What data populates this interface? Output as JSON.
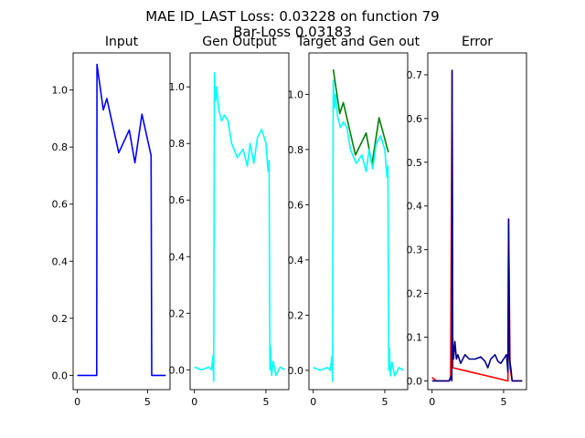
{
  "suptitle": {
    "line1": "MAE ID_LAST Loss: 0.03228 on function 79",
    "line2": "Bar-Loss 0.03183"
  },
  "chart_data": [
    {
      "type": "line",
      "title": "Input",
      "xlim": [
        -0.3,
        6.6
      ],
      "ylim": [
        -0.05,
        1.13
      ],
      "xticks": [
        0,
        5
      ],
      "yticks": [
        0.0,
        0.2,
        0.4,
        0.6,
        0.8,
        1.0
      ],
      "ytick_labels": [
        "0.0",
        "0.2",
        "0.4",
        "0.6",
        "0.8",
        "1.0"
      ],
      "series": [
        {
          "color": "#0000ff",
          "points": [
            [
              0,
              0
            ],
            [
              1.38,
              0
            ],
            [
              1.4,
              1.09
            ],
            [
              1.85,
              0.93
            ],
            [
              2.1,
              0.97
            ],
            [
              2.95,
              0.78
            ],
            [
              3.7,
              0.86
            ],
            [
              4.1,
              0.745
            ],
            [
              4.6,
              0.915
            ],
            [
              5.25,
              0.77
            ],
            [
              5.3,
              0
            ],
            [
              6.3,
              0
            ]
          ]
        }
      ]
    },
    {
      "type": "line",
      "title": "Gen Output",
      "xlim": [
        -0.3,
        6.6
      ],
      "ylim": [
        -0.07,
        1.12
      ],
      "xticks": [
        0,
        5
      ],
      "yticks": [
        0.0,
        0.2,
        0.4,
        0.6,
        0.8,
        1.0
      ],
      "ytick_labels": [
        "0.0",
        "0.2",
        "0.4",
        "0.6",
        "0.8",
        "1.0"
      ],
      "series": [
        {
          "color": "#00ffff",
          "points": [
            [
              0,
              0.01
            ],
            [
              0.5,
              0
            ],
            [
              1.0,
              0.01
            ],
            [
              1.2,
              0.0
            ],
            [
              1.3,
              0.05
            ],
            [
              1.35,
              -0.04
            ],
            [
              1.4,
              1.05
            ],
            [
              1.48,
              0.95
            ],
            [
              1.55,
              1.0
            ],
            [
              1.7,
              0.92
            ],
            [
              1.9,
              0.88
            ],
            [
              2.1,
              0.9
            ],
            [
              2.35,
              0.88
            ],
            [
              2.6,
              0.8
            ],
            [
              3.0,
              0.75
            ],
            [
              3.4,
              0.78
            ],
            [
              3.7,
              0.72
            ],
            [
              3.9,
              0.8
            ],
            [
              4.15,
              0.73
            ],
            [
              4.4,
              0.82
            ],
            [
              4.7,
              0.85
            ],
            [
              5.0,
              0.8
            ],
            [
              5.15,
              0.7
            ],
            [
              5.22,
              0.74
            ],
            [
              5.28,
              0.0
            ],
            [
              5.32,
              0.08
            ],
            [
              5.4,
              -0.02
            ],
            [
              5.5,
              0.03
            ],
            [
              5.7,
              -0.02
            ],
            [
              6.0,
              0.01
            ],
            [
              6.3,
              0.0
            ]
          ]
        }
      ]
    },
    {
      "type": "line",
      "title": "Target and Gen out",
      "xlim": [
        -0.3,
        6.6
      ],
      "ylim": [
        -0.07,
        1.15
      ],
      "xticks": [
        0,
        5
      ],
      "yticks": [
        0.0,
        0.2,
        0.4,
        0.6,
        0.8,
        1.0
      ],
      "ytick_labels": [
        "0.0",
        "0.2",
        "0.4",
        "0.6",
        "0.8",
        "1.0"
      ],
      "series": [
        {
          "color": "#008000",
          "points": [
            [
              1.4,
              1.09
            ],
            [
              1.85,
              0.93
            ],
            [
              2.1,
              0.97
            ],
            [
              2.95,
              0.78
            ],
            [
              3.7,
              0.86
            ],
            [
              4.1,
              0.745
            ],
            [
              4.6,
              0.915
            ],
            [
              5.25,
              0.79
            ]
          ]
        },
        {
          "color": "#00ffff",
          "points": [
            [
              0,
              0.01
            ],
            [
              0.5,
              0
            ],
            [
              1.0,
              0.01
            ],
            [
              1.2,
              0.0
            ],
            [
              1.3,
              0.05
            ],
            [
              1.35,
              -0.04
            ],
            [
              1.4,
              1.05
            ],
            [
              1.48,
              0.95
            ],
            [
              1.55,
              1.0
            ],
            [
              1.7,
              0.92
            ],
            [
              1.9,
              0.88
            ],
            [
              2.1,
              0.9
            ],
            [
              2.35,
              0.88
            ],
            [
              2.6,
              0.8
            ],
            [
              3.0,
              0.75
            ],
            [
              3.4,
              0.78
            ],
            [
              3.7,
              0.72
            ],
            [
              3.9,
              0.8
            ],
            [
              4.15,
              0.73
            ],
            [
              4.4,
              0.82
            ],
            [
              4.7,
              0.85
            ],
            [
              5.0,
              0.8
            ],
            [
              5.15,
              0.7
            ],
            [
              5.22,
              0.74
            ],
            [
              5.28,
              0.0
            ],
            [
              5.32,
              0.08
            ],
            [
              5.4,
              -0.02
            ],
            [
              5.5,
              0.03
            ],
            [
              5.7,
              -0.02
            ],
            [
              6.0,
              0.01
            ],
            [
              6.3,
              0.0
            ]
          ]
        }
      ]
    },
    {
      "type": "line",
      "title": "Error",
      "xlim": [
        -0.3,
        6.6
      ],
      "ylim": [
        -0.02,
        0.75
      ],
      "xticks": [
        0,
        5
      ],
      "yticks": [
        0.0,
        0.1,
        0.2,
        0.3,
        0.4,
        0.5,
        0.6,
        0.7
      ],
      "ytick_labels": [
        "0.0",
        "0.1",
        "0.2",
        "0.3",
        "0.4",
        "0.5",
        "0.6",
        "0.7"
      ],
      "series": [
        {
          "color": "#ff0000",
          "points": [
            [
              0,
              0.008
            ],
            [
              0.3,
              0.0
            ],
            [
              1.2,
              0.0
            ],
            [
              1.3,
              0.01
            ],
            [
              1.4,
              0.71
            ],
            [
              1.45,
              0.03
            ],
            [
              5.3,
              0.0
            ],
            [
              5.35,
              0.37
            ],
            [
              5.45,
              0.03
            ],
            [
              5.6,
              0.0
            ],
            [
              6.3,
              0.0
            ]
          ]
        },
        {
          "color": "#00008b",
          "points": [
            [
              0,
              0.0
            ],
            [
              1.2,
              0.0
            ],
            [
              1.32,
              0.01
            ],
            [
              1.38,
              0.0
            ],
            [
              1.4,
              0.71
            ],
            [
              1.44,
              0.1
            ],
            [
              1.5,
              0.05
            ],
            [
              1.6,
              0.09
            ],
            [
              1.7,
              0.05
            ],
            [
              1.8,
              0.06
            ],
            [
              2.0,
              0.04
            ],
            [
              2.3,
              0.06
            ],
            [
              2.6,
              0.05
            ],
            [
              3.0,
              0.05
            ],
            [
              3.4,
              0.055
            ],
            [
              3.7,
              0.045
            ],
            [
              3.9,
              0.03
            ],
            [
              4.1,
              0.05
            ],
            [
              4.4,
              0.06
            ],
            [
              4.6,
              0.045
            ],
            [
              4.8,
              0.04
            ],
            [
              5.0,
              0.05
            ],
            [
              5.2,
              0.06
            ],
            [
              5.3,
              0.02
            ],
            [
              5.35,
              0.37
            ],
            [
              5.42,
              0.05
            ],
            [
              5.5,
              0.03
            ],
            [
              5.6,
              0.0
            ],
            [
              6.3,
              0.0
            ]
          ]
        }
      ]
    }
  ]
}
